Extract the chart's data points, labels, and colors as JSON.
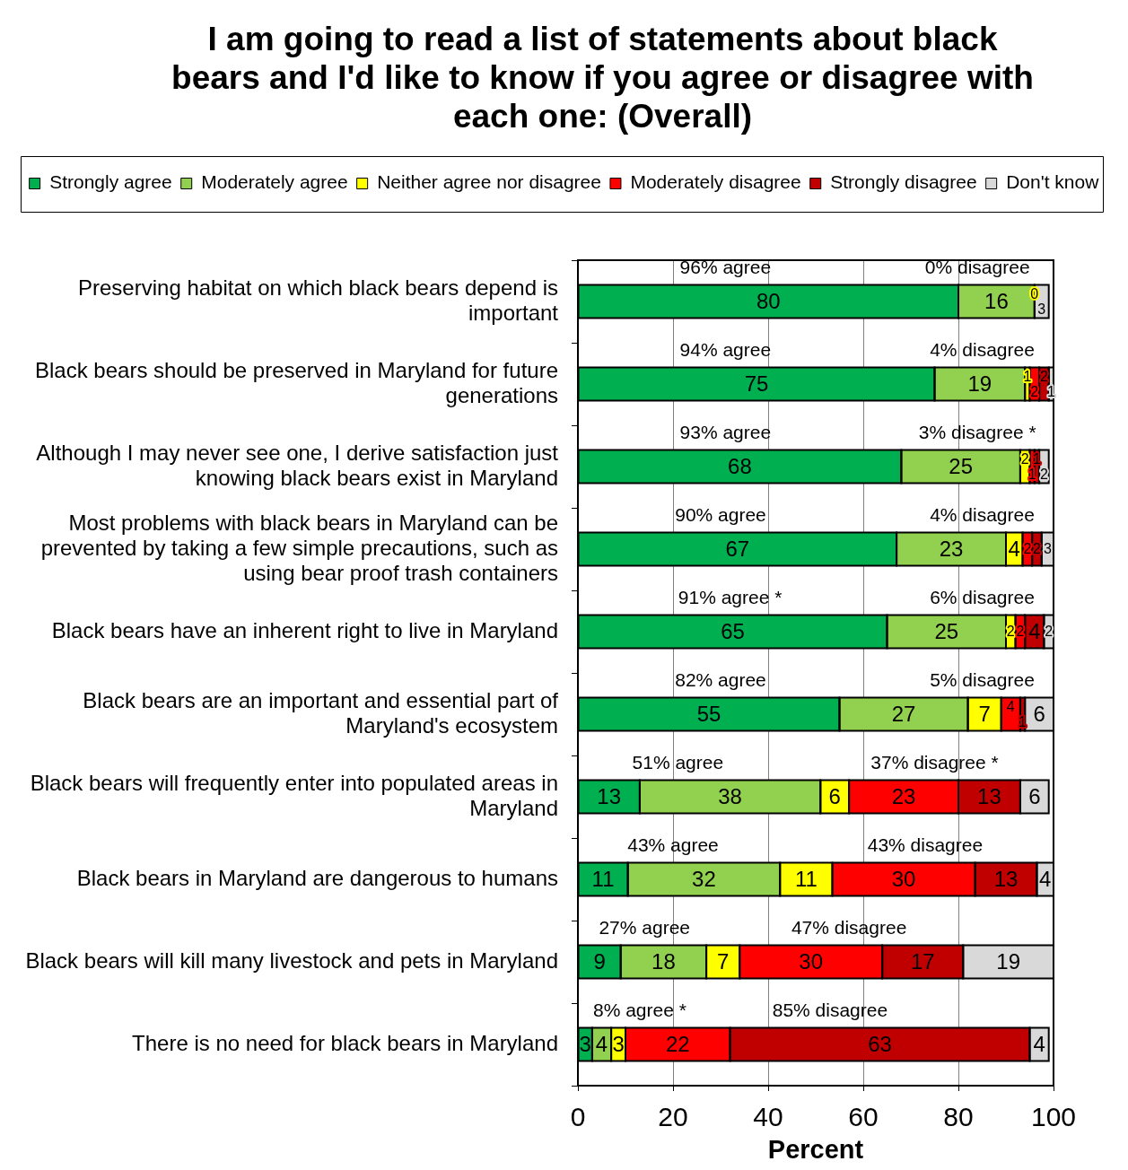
{
  "chart_data": {
    "type": "bar",
    "orientation": "horizontal",
    "stacked": true,
    "title": "I am going to read a list of statements about black bears and I'd like to know if you agree or disagree with each one: (Overall)",
    "xlabel": "Percent",
    "categories": [
      "Preserving habitat on which black bears depend is important",
      "Black bears should be preserved in Maryland for future generations",
      "Although I may never see one, I derive satisfaction just knowing black bears exist in Maryland",
      "Most problems with black bears in Maryland can be prevented by taking a few simple precautions, such as using bear proof trash containers",
      "Black bears have an inherent right to live in Maryland",
      "Black bears are an important and essential part of Maryland's ecosystem",
      "Black bears will frequently enter into populated areas in Maryland",
      "Black bears in Maryland are dangerous to humans",
      "Black bears will kill many livestock and pets in Maryland",
      "There is no need for black bears in Maryland"
    ],
    "series": [
      {
        "name": "Strongly agree",
        "color": "#00b050",
        "values": [
          80,
          75,
          68,
          67,
          65,
          55,
          13,
          10.5,
          9,
          3
        ],
        "value_labels": [
          "80",
          "75",
          "68",
          "67",
          "65",
          "55",
          "13",
          "11",
          "9",
          "3"
        ]
      },
      {
        "name": "Moderately agree",
        "color": "#92d050",
        "values": [
          16,
          19,
          25,
          23,
          25,
          27,
          38,
          32,
          18,
          4
        ],
        "value_labels": [
          "16",
          "19",
          "25",
          "23",
          "25",
          "27",
          "38",
          "32",
          "18",
          "4"
        ]
      },
      {
        "name": "Neither agree nor disagree",
        "color": "#ffff00",
        "values": [
          0,
          1,
          2,
          3.5,
          2,
          7,
          6,
          11,
          7,
          3
        ],
        "value_labels": [
          "0",
          "1",
          "2",
          "4",
          "2",
          "7",
          "6",
          "11",
          "7",
          "3"
        ]
      },
      {
        "name": "Moderately disagree",
        "color": "#ff0000",
        "values": [
          0,
          2,
          1,
          2,
          2,
          4,
          23,
          30,
          30,
          22
        ],
        "value_labels": [
          null,
          "2",
          "1",
          "2",
          "2",
          "4",
          "23",
          "30",
          "30",
          "22"
        ]
      },
      {
        "name": "Strongly disagree",
        "color": "#c00000",
        "values": [
          0,
          2,
          1,
          2,
          4,
          1,
          13,
          13,
          17,
          63
        ],
        "value_labels": [
          null,
          "2",
          "1",
          "2",
          "4",
          "1",
          "13",
          "13",
          "17",
          "63"
        ]
      },
      {
        "name": "Don't know",
        "color": "#d9d9d9",
        "values": [
          3,
          1,
          2,
          2.5,
          2,
          6,
          6,
          3.5,
          19,
          4
        ],
        "value_labels": [
          "3",
          "1",
          "2",
          "3",
          "2",
          "6",
          "6",
          "4",
          "19",
          "4"
        ]
      }
    ],
    "xlim": [
      0,
      100
    ],
    "xticks": [
      0,
      20,
      40,
      60,
      80,
      100
    ],
    "grid": "x",
    "legend": "top",
    "annotations": [
      "96% agree",
      "0% disagree",
      "94% agree",
      "4% disagree",
      "93% agree",
      "3% disagree *",
      "90% agree",
      "4% disagree",
      "91% agree *",
      "6% disagree",
      "82% agree",
      "5% disagree",
      "51% agree",
      "37% disagree *",
      "43% agree",
      "43% disagree",
      "27% agree",
      "47% disagree",
      "8% agree *",
      "85% disagree"
    ]
  }
}
